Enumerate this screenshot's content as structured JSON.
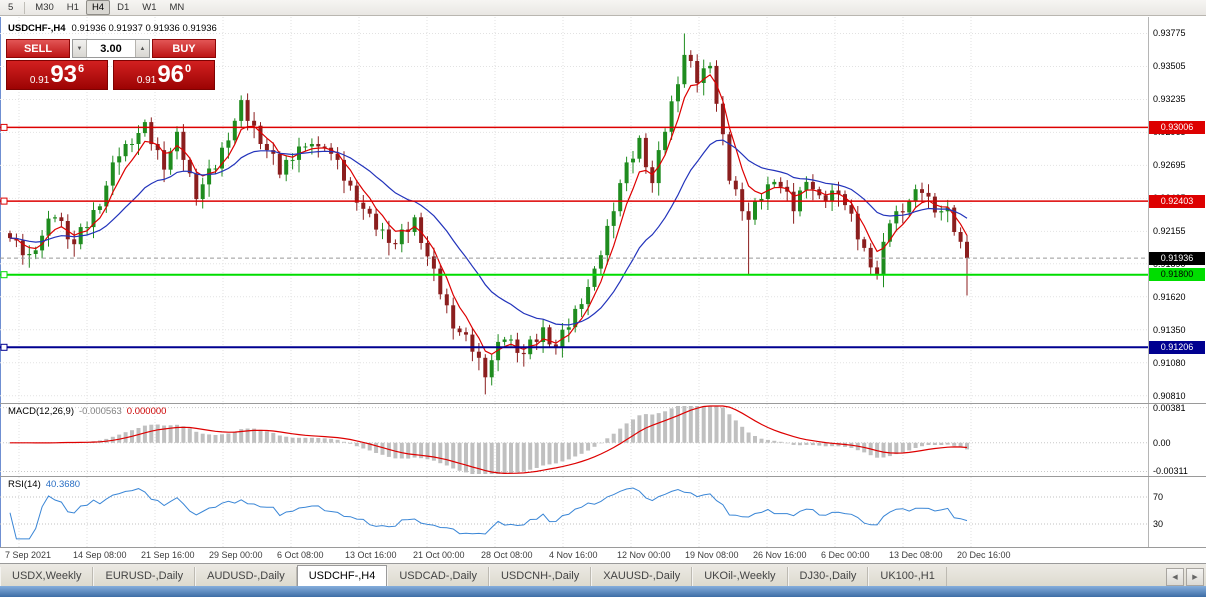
{
  "toolbar": {
    "timeframes": [
      "5",
      "M30",
      "H1",
      "H4",
      "D1",
      "W1",
      "MN"
    ],
    "active": "H4"
  },
  "chart": {
    "symbol_title": "USDCHF-,H4",
    "ohlc_line": "0.91936 0.91937 0.91936 0.91936",
    "trade_panel": {
      "sell_label": "SELL",
      "buy_label": "BUY",
      "volume": "3.00",
      "spin_up_icon": "▲",
      "spin_down_icon": "▼",
      "sell_price": {
        "prefix": "0.91",
        "big": "93",
        "pip": "6"
      },
      "buy_price": {
        "prefix": "0.91",
        "big": "96",
        "pip": "0"
      }
    },
    "y_axis": {
      "ticks": [
        {
          "label": "0.93775",
          "value": 0.93775
        },
        {
          "label": "0.93505",
          "value": 0.93505
        },
        {
          "label": "0.93235",
          "value": 0.93235
        },
        {
          "label": "0.92965",
          "value": 0.92965
        },
        {
          "label": "0.92695",
          "value": 0.92695
        },
        {
          "label": "0.92425",
          "value": 0.92425
        },
        {
          "label": "0.92155",
          "value": 0.92155
        },
        {
          "label": "0.91890",
          "value": 0.9189
        },
        {
          "label": "0.91620",
          "value": 0.9162
        },
        {
          "label": "0.91350",
          "value": 0.9135
        },
        {
          "label": "0.91080",
          "value": 0.9108
        },
        {
          "label": "0.90810",
          "value": 0.9081
        }
      ]
    },
    "x_axis": {
      "labels": [
        "7 Sep 2021",
        "14 Sep 08:00",
        "21 Sep 16:00",
        "29 Sep 00:00",
        "6 Oct 08:00",
        "13 Oct 16:00",
        "21 Oct 00:00",
        "28 Oct 08:00",
        "4 Nov 16:00",
        "12 Nov 00:00",
        "19 Nov 08:00",
        "26 Nov 16:00",
        "6 Dec 00:00",
        "13 Dec 08:00",
        "20 Dec 16:00"
      ]
    },
    "hlines": [
      {
        "value": 0.93006,
        "label": "0.93006",
        "color": "#dd0000",
        "text_color": "#ffffff",
        "width": 1.5
      },
      {
        "value": 0.92403,
        "label": "0.92403",
        "color": "#dd0000",
        "text_color": "#ffffff",
        "width": 1.5
      },
      {
        "value": 0.918,
        "label": "0.91800",
        "color": "#00dd00",
        "text_color": "#000000",
        "width": 2
      },
      {
        "value": 0.91206,
        "label": "0.91206",
        "color": "#000090",
        "text_color": "#ffffff",
        "width": 2
      }
    ],
    "current_price": {
      "value": 0.91936,
      "label": "0.91936",
      "badge_bg": "#000000",
      "badge_text": "#ffffff"
    }
  },
  "chart_data": {
    "type": "candlestick",
    "symbol": "USDCHF",
    "timeframe": "H4",
    "first_open": 0.9214,
    "closes": [
      0.921,
      0.9208,
      0.9196,
      0.9197,
      0.92,
      0.9212,
      0.9226,
      0.9227,
      0.9224,
      0.9209,
      0.9205,
      0.9219,
      0.9219,
      0.9233,
      0.9236,
      0.9253,
      0.9272,
      0.9277,
      0.9287,
      0.9287,
      0.9296,
      0.9305,
      0.9287,
      0.9282,
      0.9266,
      0.9281,
      0.9297,
      0.9274,
      0.9263,
      0.9242,
      0.9254,
      0.9267,
      0.9267,
      0.9284,
      0.929,
      0.9306,
      0.9323,
      0.9306,
      0.9302,
      0.9287,
      0.9282,
      0.9279,
      0.9262,
      0.9274,
      0.9274,
      0.9285,
      0.9285,
      0.9287,
      0.9285,
      0.9284,
      0.9279,
      0.9274,
      0.9257,
      0.9253,
      0.9239,
      0.9234,
      0.923,
      0.9217,
      0.9217,
      0.9206,
      0.9205,
      0.9217,
      0.9215,
      0.9227,
      0.9206,
      0.9195,
      0.9185,
      0.9164,
      0.9155,
      0.9136,
      0.9133,
      0.9131,
      0.9117,
      0.9112,
      0.9096,
      0.911,
      0.9125,
      0.9127,
      0.9127,
      0.9116,
      0.9115,
      0.9127,
      0.9125,
      0.9137,
      0.9123,
      0.912,
      0.9135,
      0.9137,
      0.9152,
      0.9156,
      0.917,
      0.9185,
      0.9196,
      0.922,
      0.9232,
      0.9255,
      0.9272,
      0.9275,
      0.9292,
      0.9268,
      0.9255,
      0.9282,
      0.9297,
      0.9322,
      0.9336,
      0.936,
      0.9355,
      0.9337,
      0.9349,
      0.9351,
      0.932,
      0.9295,
      0.9257,
      0.925,
      0.9232,
      0.9225,
      0.924,
      0.9242,
      0.9254,
      0.9256,
      0.9252,
      0.9248,
      0.9232,
      0.9249,
      0.9256,
      0.925,
      0.9245,
      0.924,
      0.9249,
      0.9246,
      0.9237,
      0.923,
      0.9209,
      0.9202,
      0.9186,
      0.918,
      0.9207,
      0.9222,
      0.9232,
      0.9231,
      0.924,
      0.925,
      0.9247,
      0.9244,
      0.9231,
      0.9232,
      0.9235,
      0.9215,
      0.9207,
      0.91936
    ],
    "wick_overrides": {
      "74": {
        "low": 0.9082
      },
      "105": {
        "high": 0.93775
      },
      "115": {
        "low": 0.918
      },
      "135": {
        "low": 0.9176
      },
      "149": {
        "low": 0.9163
      }
    },
    "price_range": {
      "top": 0.9391,
      "bottom": 0.9075
    },
    "indicators": {
      "macd": {
        "name": "MACD(12,26,9)",
        "main_value": "-0.000563",
        "signal_value": "0.000000",
        "axis_ticks": [
          {
            "label": "0.00381",
            "value": 0.00381
          },
          {
            "label": "0.00",
            "value": 0
          },
          {
            "label": "-0.00311",
            "value": -0.00311
          }
        ],
        "range": {
          "top": 0.0042,
          "bottom": -0.0036
        }
      },
      "rsi": {
        "name": "RSI(14)",
        "value": "40.3680",
        "levels": [
          {
            "label": "70",
            "value": 70
          },
          {
            "label": "30",
            "value": 30
          }
        ]
      }
    }
  },
  "colors": {
    "bull": "#1f8c1f",
    "bear": "#8b1e1e",
    "ma_fast": "#dd0000",
    "ma_slow": "#2233bb",
    "grid": "#e2e2e2",
    "macd_hist": "#c0c0c0",
    "macd_signal": "#dd0000",
    "rsi_line": "#3a86d6",
    "current_line": "#999999"
  },
  "tabs": {
    "items": [
      "USDX,Weekly",
      "EURUSD-,Daily",
      "AUDUSD-,Daily",
      "USDCHF-,H4",
      "USDCAD-,Daily",
      "USDCNH-,Daily",
      "XAUUSD-,Daily",
      "UKOil-,Weekly",
      "DJ30-,Daily",
      "UK100-,H1"
    ],
    "active": "USDCHF-,H4",
    "scroll_left_icon": "◀",
    "scroll_right_icon": "▶"
  }
}
